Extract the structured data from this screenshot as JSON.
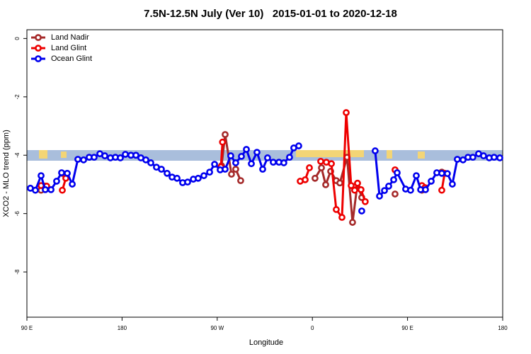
{
  "chart_data": {
    "type": "line",
    "title": "7.5N-12.5N July (Ver 10)   2015-01-01 to 2020-12-18",
    "x_label": "Longitude",
    "y_label": "XCO2 - MLO trend (ppm)",
    "xlim": [
      90,
      540
    ],
    "xticks": [
      {
        "value": 90,
        "label": "90 E"
      },
      180,
      {
        "value": 270,
        "label": "90 W"
      },
      {
        "value": 360,
        "label": "0"
      },
      {
        "value": 450,
        "label": "90 E"
      },
      {
        "value": 540,
        "label": "180"
      }
    ],
    "ylim": [
      -9.55,
      0.3
    ],
    "yticks": [
      0,
      -2,
      -4,
      -6,
      -8
    ],
    "legend": "top-left",
    "series": [
      {
        "name": "Land Nadir",
        "color": "#a52a2a",
        "x": [
          103.4,
          107.4,
          115,
          123.5,
          200,
          274.1,
          277.5,
          283.5,
          287.5,
          292.2,
          320,
          362.5,
          368.6,
          372.6,
          377.3,
          382.6,
          386,
          392.8,
          398,
          402.7,
          406.7,
          420,
          438.2,
          450,
          463.6,
          475,
          482.4
        ],
        "values": [
          -5.2,
          -5.06,
          null,
          -4.62,
          null,
          -4.36,
          -3.29,
          -4.65,
          -4.48,
          -4.87,
          null,
          -4.79,
          -4.43,
          -5.01,
          -4.55,
          -4.87,
          -4.95,
          -4.07,
          -6.3,
          -4.96,
          -5.45,
          null,
          -5.33,
          null,
          -5.2,
          null,
          -4.58
        ]
      },
      {
        "name": "Land Glint",
        "color": "#ee0000",
        "x": [
          103.4,
          108.7,
          115,
          123.5,
          126.8,
          200,
          273.5,
          275,
          320,
          348.5,
          353.2,
          357.2,
          362,
          367.9,
          373.2,
          378,
          382.6,
          388,
          392,
          396.7,
          400,
          402.7,
          406,
          410,
          420,
          438.2,
          450,
          463.6,
          466.5,
          475,
          482.4,
          485.1
        ],
        "values": [
          -5.04,
          -5.06,
          null,
          -5.2,
          -4.79,
          null,
          -4.4,
          -3.55,
          null,
          -4.89,
          -4.84,
          -4.43,
          null,
          -4.21,
          -4.24,
          -4.29,
          -5.86,
          -6.13,
          -2.54,
          -5.04,
          -5.2,
          -4.96,
          -5.18,
          -5.59,
          null,
          -4.5,
          null,
          -5.04,
          -5.11,
          null,
          -5.2,
          -4.62
        ]
      },
      {
        "name": "Ocean Glint",
        "color": "#0000ee",
        "x": [
          93.3,
          98,
          103.4,
          107.4,
          112.8,
          118.1,
          122.8,
          128.2,
          132.9,
          138.2,
          143.6,
          148.9,
          153.6,
          159,
          163.7,
          169,
          173.7,
          178.4,
          183.1,
          188.4,
          193.1,
          197.8,
          202.5,
          207.2,
          212.5,
          217.2,
          222.6,
          227.3,
          232,
          237.3,
          242,
          247.4,
          252,
          257.4,
          262.8,
          267.5,
          272.8,
          277.5,
          282.8,
          287.5,
          292.9,
          297.6,
          302.3,
          307.6,
          313,
          317.6,
          323,
          328.4,
          333,
          338.4,
          342.4,
          347.1,
          380,
          406.7,
          413,
          419.4,
          423.5,
          428.2,
          432.2,
          436.9,
          440.2,
          448.2,
          452.9,
          458.3,
          462.4,
          467,
          472.4,
          477.7,
          482.4,
          487.7,
          492.4,
          497.1,
          502.5,
          507.2,
          511.8,
          517.2,
          521.9,
          527.3,
          531.9,
          537.3
        ],
        "values": [
          -5.13,
          -5.2,
          -4.7,
          -5.18,
          -5.18,
          -4.89,
          -4.6,
          -4.62,
          -4.99,
          -4.14,
          -4.16,
          -4.07,
          -4.07,
          -3.95,
          -4.02,
          -4.09,
          -4.07,
          -4.09,
          -3.97,
          -4.0,
          -4.0,
          -4.09,
          -4.16,
          -4.26,
          -4.41,
          -4.48,
          -4.62,
          -4.75,
          -4.79,
          -4.94,
          -4.92,
          -4.82,
          -4.79,
          -4.7,
          -4.58,
          -4.31,
          -4.5,
          -4.48,
          -4.02,
          -4.26,
          -4.04,
          -3.8,
          -4.29,
          -3.9,
          -4.48,
          -4.09,
          -4.24,
          -4.24,
          -4.26,
          -4.07,
          -3.75,
          -3.68,
          null,
          -5.91,
          null,
          -3.85,
          -5.4,
          -5.21,
          -5.06,
          -4.84,
          -4.6,
          -5.16,
          -5.2,
          -4.7,
          -5.18,
          -5.18,
          -4.89,
          -4.6,
          -4.62,
          -4.63,
          -4.99,
          -4.14,
          -4.16,
          -4.07,
          -4.07,
          -3.95,
          -4.02,
          -4.09,
          -4.07,
          -4.09
        ]
      }
    ]
  }
}
